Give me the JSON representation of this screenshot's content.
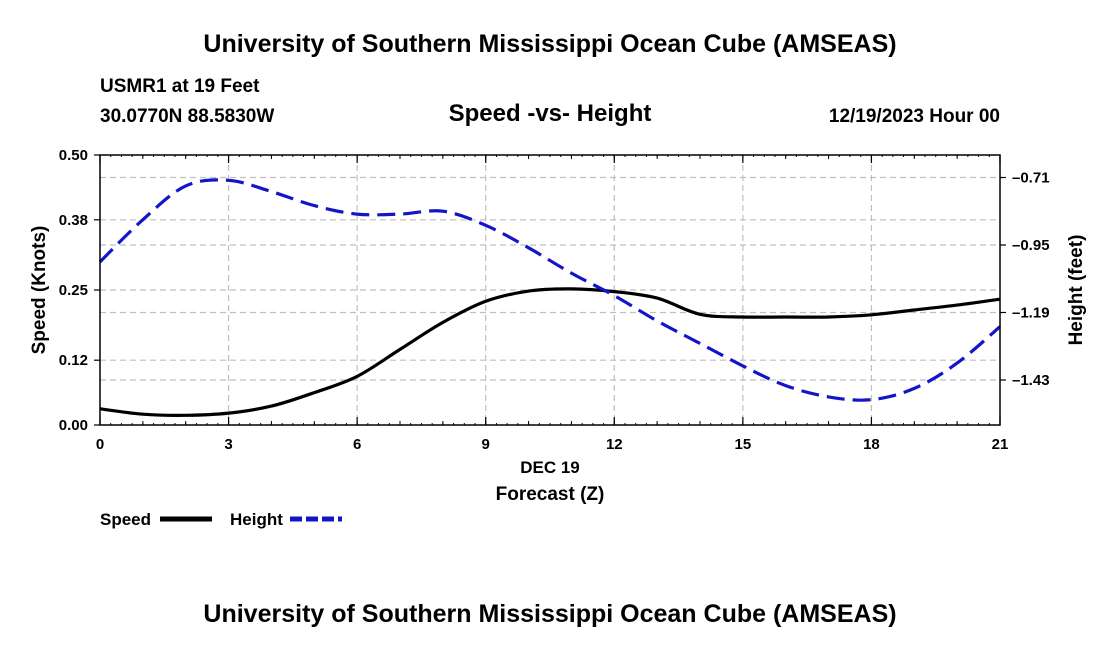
{
  "page": {
    "top_title": "University of Southern Mississippi Ocean Cube (AMSEAS)",
    "bottom_title": "University of Southern Mississippi Ocean Cube (AMSEAS)",
    "station": "USMR1 at 19 Feet",
    "coords": "30.0770N  88.5830W",
    "subtitle": "Speed -vs- Height",
    "datetime": "12/19/2023 Hour 00"
  },
  "colors": {
    "speed": "#000000",
    "height": "#1414c8",
    "grid": "#bfbfbf"
  },
  "chart_data": {
    "type": "line",
    "title": "Speed -vs- Height",
    "xlabel": "Forecast (Z)",
    "xlabel_date": "DEC 19",
    "ylabel_left": "Speed (Knots)",
    "ylabel_right": "Height (feet)",
    "xlim": [
      0,
      21
    ],
    "ylim_left": [
      0,
      0.5
    ],
    "ylim_right": [
      -1.59,
      -0.63
    ],
    "x_ticks": [
      0,
      3,
      6,
      9,
      12,
      15,
      18,
      21
    ],
    "y_left_ticks": [
      0.0,
      0.12,
      0.25,
      0.38,
      0.5
    ],
    "y_left_tick_labels": [
      "0.00",
      "0.12",
      "0.25",
      "0.38",
      "0.50"
    ],
    "y_right_ticks": [
      -1.43,
      -1.19,
      -0.95,
      -0.71
    ],
    "y_right_tick_labels": [
      "-1.43",
      "-1.19",
      "-0.95",
      "-0.71"
    ],
    "grid": true,
    "series": [
      {
        "name": "Speed",
        "axis": "left",
        "style": "solid",
        "x": [
          0,
          1,
          2,
          3,
          4,
          5,
          6,
          7,
          8,
          9,
          10,
          11,
          12,
          13,
          14,
          15,
          16,
          17,
          18,
          19,
          20,
          21
        ],
        "values": [
          0.03,
          0.02,
          0.018,
          0.022,
          0.035,
          0.06,
          0.09,
          0.14,
          0.19,
          0.229,
          0.248,
          0.252,
          0.247,
          0.235,
          0.205,
          0.2,
          0.2,
          0.2,
          0.204,
          0.213,
          0.222,
          0.233
        ]
      },
      {
        "name": "Height",
        "axis": "right",
        "style": "dashed",
        "x": [
          0,
          1,
          2,
          3,
          4,
          5,
          6,
          7,
          8,
          9,
          10,
          11,
          12,
          13,
          14,
          15,
          16,
          17,
          18,
          19,
          20,
          21
        ],
        "values": [
          -1.01,
          -0.86,
          -0.74,
          -0.72,
          -0.76,
          -0.81,
          -0.84,
          -0.84,
          -0.83,
          -0.88,
          -0.96,
          -1.05,
          -1.13,
          -1.22,
          -1.3,
          -1.38,
          -1.45,
          -1.49,
          -1.5,
          -1.46,
          -1.37,
          -1.24
        ]
      }
    ],
    "legend": [
      {
        "label": "Speed",
        "style": "solid"
      },
      {
        "label": "Height",
        "style": "dashed"
      }
    ]
  }
}
